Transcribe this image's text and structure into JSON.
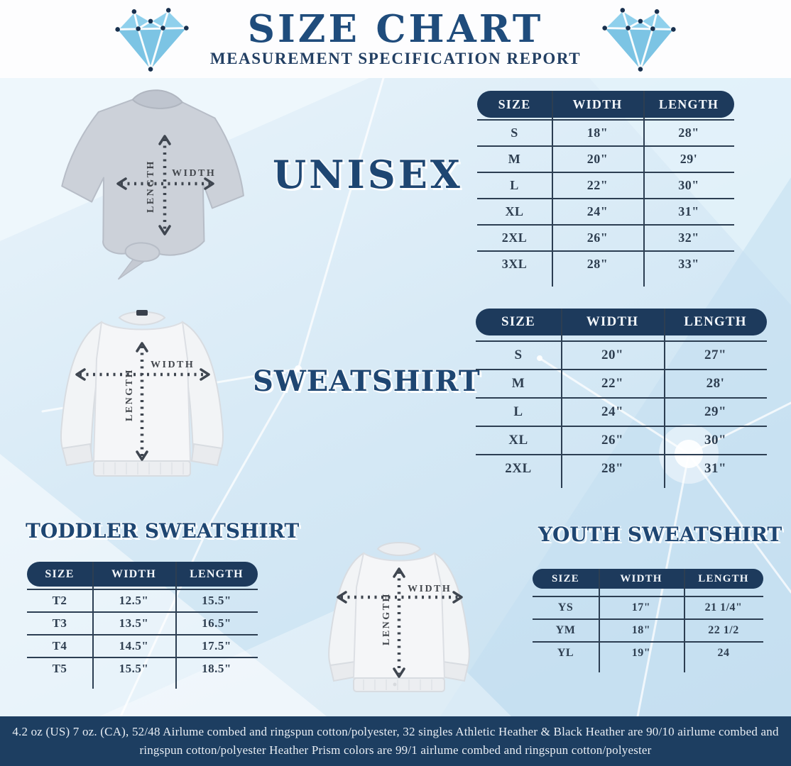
{
  "header": {
    "title": "SIZE CHART",
    "subtitle": "MEASUREMENT SPECIFICATION REPORT",
    "left_icon": "diamond-icon",
    "right_icon": "diamond-icon"
  },
  "garment_labels": {
    "width": "WIDTH",
    "length": "LENGTH"
  },
  "sections": {
    "unisex": {
      "label": "UNISEX",
      "table": {
        "columns": [
          "SIZE",
          "WIDTH",
          "LENGTH"
        ],
        "rows": [
          [
            "S",
            "18\"",
            "28\""
          ],
          [
            "M",
            "20\"",
            "29'"
          ],
          [
            "L",
            "22\"",
            "30\""
          ],
          [
            "XL",
            "24\"",
            "31\""
          ],
          [
            "2XL",
            "26\"",
            "32\""
          ],
          [
            "3XL",
            "28\"",
            "33\""
          ]
        ]
      }
    },
    "sweatshirt": {
      "label": "SWEATSHIRT",
      "table": {
        "columns": [
          "SIZE",
          "WIDTH",
          "LENGTH"
        ],
        "rows": [
          [
            "S",
            "20\"",
            "27\""
          ],
          [
            "M",
            "22\"",
            "28'"
          ],
          [
            "L",
            "24\"",
            "29\""
          ],
          [
            "XL",
            "26\"",
            "30\""
          ],
          [
            "2XL",
            "28\"",
            "31\""
          ]
        ]
      }
    },
    "toddler": {
      "label": "TODDLER SWEATSHIRT",
      "table": {
        "columns": [
          "SIZE",
          "WIDTH",
          "LENGTH"
        ],
        "rows": [
          [
            "T2",
            "12.5\"",
            "15.5\""
          ],
          [
            "T3",
            "13.5\"",
            "16.5\""
          ],
          [
            "T4",
            "14.5\"",
            "17.5\""
          ],
          [
            "T5",
            "15.5\"",
            "18.5\""
          ]
        ]
      }
    },
    "youth": {
      "label": "YOUTH SWEATSHIRT",
      "table": {
        "columns": [
          "SIZE",
          "WIDTH",
          "LENGTH"
        ],
        "rows": [
          [
            "YS",
            "17\"",
            "21 1/4\""
          ],
          [
            "YM",
            "18\"",
            "22 1/2"
          ],
          [
            "YL",
            "19\"",
            "24"
          ]
        ]
      }
    }
  },
  "footer": {
    "line1": "4.2 oz (US) 7 oz. (CA), 52/48 Airlume combed and ringspun cotton/polyester, 32 singles Athletic Heather & Black Heather are 90/10 airlume combed and",
    "line2": "ringspun cotton/polyester Heather Prism colors are 99/1 airlume combed and ringspun cotton/polyester"
  },
  "colors": {
    "navy_dark": "#1d3a5c",
    "footer_navy": "#1d3e61",
    "heading_navy": "#1e4672",
    "title_navy": "#1f4c7c",
    "diamond_blue": "#7ec9e6",
    "background_blue": "#d4e8f5",
    "cell_text": "#2e3e50",
    "line_color": "#2c3e52",
    "tshirt_grey": "#ccd1d9",
    "sweatshirt_white": "#f5f6f8"
  }
}
